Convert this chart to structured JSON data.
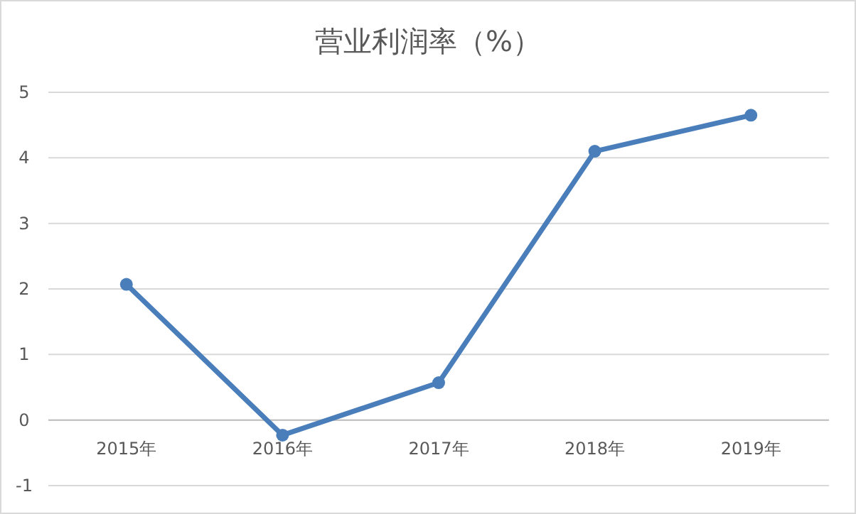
{
  "chart_data": {
    "type": "line",
    "title": "营业利润率（%）",
    "categories": [
      "2015年",
      "2016年",
      "2017年",
      "2018年",
      "2019年"
    ],
    "series": [
      {
        "color": "#4a7ebb",
        "values": [
          2.07,
          -0.23,
          0.57,
          4.1,
          4.65
        ]
      }
    ],
    "ylim": [
      -1,
      5
    ],
    "yticks": [
      -1,
      0,
      1,
      2,
      3,
      4,
      5
    ],
    "grid": "y",
    "marker": "circle",
    "line_style": "solid"
  }
}
